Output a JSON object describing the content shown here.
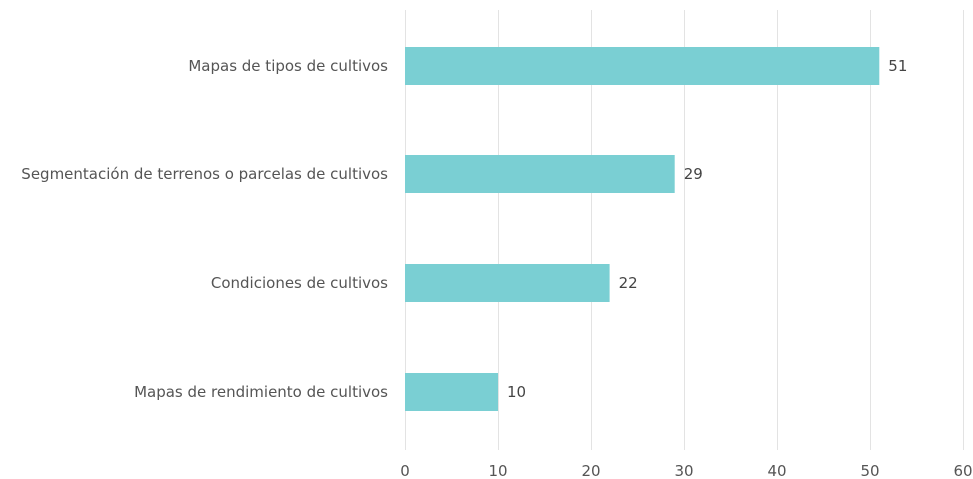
{
  "chart_data": {
    "type": "bar",
    "orientation": "horizontal",
    "categories": [
      "Mapas de tipos de cultivos",
      "Segmentación de terrenos o parcelas de cultivos",
      "Condiciones de cultivos",
      "Mapas de rendimiento de cultivos"
    ],
    "values": [
      51,
      29,
      22,
      10
    ],
    "xlim": [
      0,
      60
    ],
    "xticks": [
      0,
      10,
      20,
      30,
      40,
      50,
      60
    ],
    "grid": true,
    "bar_color": "#7acfd3",
    "show_data_labels": true,
    "title": "",
    "xlabel": "",
    "ylabel": ""
  }
}
